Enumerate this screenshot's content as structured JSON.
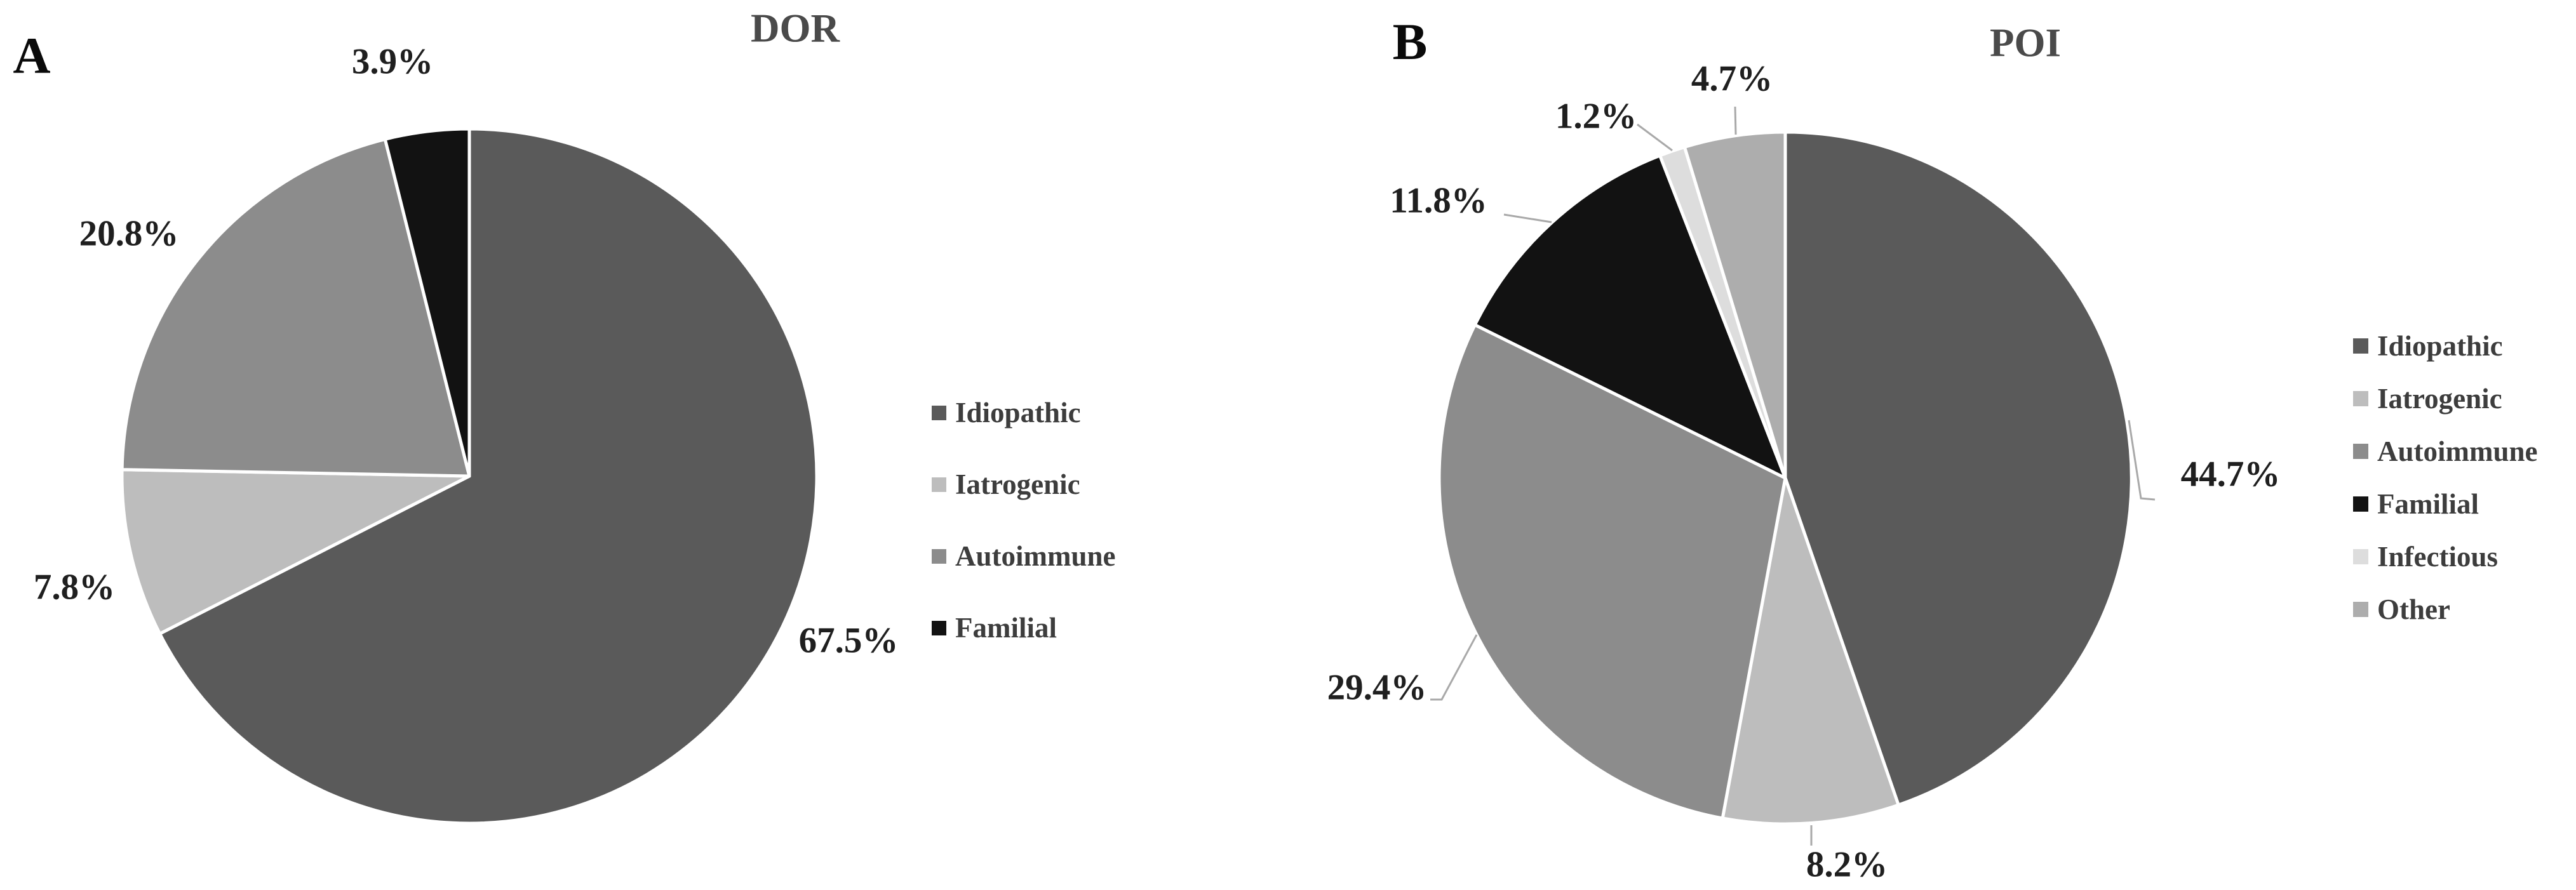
{
  "figure": {
    "background": "#ffffff",
    "panel_count": 2,
    "description_labels": {
      "left_panel_letter": "A",
      "right_panel_letter": "B"
    }
  },
  "chart_data": [
    {
      "type": "pie",
      "panel_letter": "A",
      "title": "DOR",
      "categories": [
        "Idiopathic",
        "Iatrogenic",
        "Autoimmune",
        "Familial"
      ],
      "values": [
        67.5,
        7.8,
        20.8,
        3.9
      ],
      "unit": "%",
      "data_labels": [
        "67.5%",
        "7.8%",
        "20.8%",
        "3.9%"
      ],
      "colors": [
        "#5A5A5A",
        "#BDBDBD",
        "#8C8C8C",
        "#121212"
      ],
      "start_angle_deg": 0,
      "direction": "clockwise",
      "legend_position": "right",
      "legend_items": [
        "Idiopathic",
        "Iatrogenic",
        "Autoimmune",
        "Familial"
      ]
    },
    {
      "type": "pie",
      "panel_letter": "B",
      "title": "POI",
      "categories": [
        "Idiopathic",
        "Iatrogenic",
        "Autoimmune",
        "Familial",
        "Infectious",
        "Other"
      ],
      "values": [
        44.7,
        8.2,
        29.4,
        11.8,
        1.2,
        4.7
      ],
      "unit": "%",
      "data_labels": [
        "44.7%",
        "8.2%",
        "29.4%",
        "11.8%",
        "1.2%",
        "4.7%"
      ],
      "colors": [
        "#5A5A5A",
        "#BDBDBD",
        "#8C8C8C",
        "#121212",
        "#DDDDDD",
        "#ADADAD"
      ],
      "start_angle_deg": 0,
      "direction": "clockwise",
      "legend_position": "right",
      "legend_items": [
        "Idiopathic",
        "Iatrogenic",
        "Autoimmune",
        "Familial",
        "Infectious",
        "Other"
      ]
    }
  ],
  "style_tokens": {
    "slice_border_color": "#ffffff",
    "leader_line_color": "#a9a9a9",
    "label_text_color": "#1f1f1f",
    "title_text_color": "#4a4a4a",
    "legend_text_color": "#3d3d3d"
  }
}
